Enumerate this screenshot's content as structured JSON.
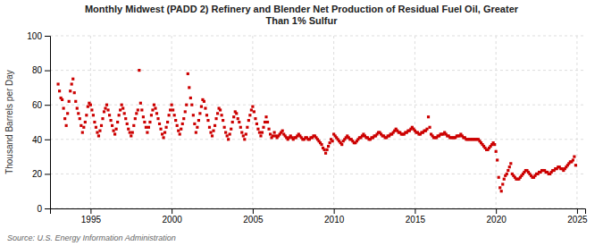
{
  "chart_data": {
    "type": "scatter",
    "title": "Monthly Midwest (PADD 2) Refinery and Blender Net Production of Residual Fuel Oil, Greater\nThan 1% Sulfur",
    "y_label": "Thousand Barrels per Day",
    "annotations": [
      "Source: U.S. Energy Information Administration"
    ],
    "color": "#cc0000",
    "marker": "square",
    "grid": true,
    "xlim": [
      1992.5,
      2025.5
    ],
    "xticks": [
      1995,
      2000,
      2005,
      2010,
      2015,
      2020,
      2025
    ],
    "ylim": [
      0,
      100
    ],
    "yticks": [
      0,
      20,
      40,
      60,
      80,
      100
    ],
    "x": [
      1993.0,
      1993.083,
      1993.167,
      1993.25,
      1993.333,
      1993.417,
      1993.5,
      1993.583,
      1993.667,
      1993.75,
      1993.833,
      1993.917,
      1994.0,
      1994.083,
      1994.167,
      1994.25,
      1994.333,
      1994.417,
      1994.5,
      1994.583,
      1994.667,
      1994.75,
      1994.833,
      1994.917,
      1995.0,
      1995.083,
      1995.167,
      1995.25,
      1995.333,
      1995.417,
      1995.5,
      1995.583,
      1995.667,
      1995.75,
      1995.833,
      1995.917,
      1996.0,
      1996.083,
      1996.167,
      1996.25,
      1996.333,
      1996.417,
      1996.5,
      1996.583,
      1996.667,
      1996.75,
      1996.833,
      1996.917,
      1997.0,
      1997.083,
      1997.167,
      1997.25,
      1997.333,
      1997.417,
      1997.5,
      1997.583,
      1997.667,
      1997.75,
      1997.833,
      1997.917,
      1998.0,
      1998.083,
      1998.167,
      1998.25,
      1998.333,
      1998.417,
      1998.5,
      1998.583,
      1998.667,
      1998.75,
      1998.833,
      1998.917,
      1999.0,
      1999.083,
      1999.167,
      1999.25,
      1999.333,
      1999.417,
      1999.5,
      1999.583,
      1999.667,
      1999.75,
      1999.833,
      1999.917,
      2000.0,
      2000.083,
      2000.167,
      2000.25,
      2000.333,
      2000.417,
      2000.5,
      2000.583,
      2000.667,
      2000.75,
      2000.833,
      2000.917,
      2001.0,
      2001.083,
      2001.167,
      2001.25,
      2001.333,
      2001.417,
      2001.5,
      2001.583,
      2001.667,
      2001.75,
      2001.833,
      2001.917,
      2002.0,
      2002.083,
      2002.167,
      2002.25,
      2002.333,
      2002.417,
      2002.5,
      2002.583,
      2002.667,
      2002.75,
      2002.833,
      2002.917,
      2003.0,
      2003.083,
      2003.167,
      2003.25,
      2003.333,
      2003.417,
      2003.5,
      2003.583,
      2003.667,
      2003.75,
      2003.833,
      2003.917,
      2004.0,
      2004.083,
      2004.167,
      2004.25,
      2004.333,
      2004.417,
      2004.5,
      2004.583,
      2004.667,
      2004.75,
      2004.833,
      2004.917,
      2005.0,
      2005.083,
      2005.167,
      2005.25,
      2005.333,
      2005.417,
      2005.5,
      2005.583,
      2005.667,
      2005.75,
      2005.833,
      2005.917,
      2006.0,
      2006.083,
      2006.167,
      2006.25,
      2006.333,
      2006.417,
      2006.5,
      2006.583,
      2006.667,
      2006.75,
      2006.833,
      2006.917,
      2007.0,
      2007.083,
      2007.167,
      2007.25,
      2007.333,
      2007.417,
      2007.5,
      2007.583,
      2007.667,
      2007.75,
      2007.833,
      2007.917,
      2008.0,
      2008.083,
      2008.167,
      2008.25,
      2008.333,
      2008.417,
      2008.5,
      2008.583,
      2008.667,
      2008.75,
      2008.833,
      2008.917,
      2009.0,
      2009.083,
      2009.167,
      2009.25,
      2009.333,
      2009.417,
      2009.5,
      2009.583,
      2009.667,
      2009.75,
      2009.833,
      2009.917,
      2010.0,
      2010.083,
      2010.167,
      2010.25,
      2010.333,
      2010.417,
      2010.5,
      2010.583,
      2010.667,
      2010.75,
      2010.833,
      2010.917,
      2011.0,
      2011.083,
      2011.167,
      2011.25,
      2011.333,
      2011.417,
      2011.5,
      2011.583,
      2011.667,
      2011.75,
      2011.833,
      2011.917,
      2012.0,
      2012.083,
      2012.167,
      2012.25,
      2012.333,
      2012.417,
      2012.5,
      2012.583,
      2012.667,
      2012.75,
      2012.833,
      2012.917,
      2013.0,
      2013.083,
      2013.167,
      2013.25,
      2013.333,
      2013.417,
      2013.5,
      2013.583,
      2013.667,
      2013.75,
      2013.833,
      2013.917,
      2014.0,
      2014.083,
      2014.167,
      2014.25,
      2014.333,
      2014.417,
      2014.5,
      2014.583,
      2014.667,
      2014.75,
      2014.833,
      2014.917,
      2015.0,
      2015.083,
      2015.167,
      2015.25,
      2015.333,
      2015.417,
      2015.5,
      2015.583,
      2015.667,
      2015.75,
      2015.833,
      2015.917,
      2016.0,
      2016.083,
      2016.167,
      2016.25,
      2016.333,
      2016.417,
      2016.5,
      2016.583,
      2016.667,
      2016.75,
      2016.833,
      2016.917,
      2017.0,
      2017.083,
      2017.167,
      2017.25,
      2017.333,
      2017.417,
      2017.5,
      2017.583,
      2017.667,
      2017.75,
      2017.833,
      2017.917,
      2018.0,
      2018.083,
      2018.167,
      2018.25,
      2018.333,
      2018.417,
      2018.5,
      2018.583,
      2018.667,
      2018.75,
      2018.833,
      2018.917,
      2019.0,
      2019.083,
      2019.167,
      2019.25,
      2019.333,
      2019.417,
      2019.5,
      2019.583,
      2019.667,
      2019.75,
      2019.833,
      2019.917,
      2020.0,
      2020.083,
      2020.167,
      2020.25,
      2020.333,
      2020.417,
      2020.5,
      2020.583,
      2020.667,
      2020.75,
      2020.833,
      2020.917,
      2021.0,
      2021.083,
      2021.167,
      2021.25,
      2021.333,
      2021.417,
      2021.5,
      2021.583,
      2021.667,
      2021.75,
      2021.833,
      2021.917,
      2022.0,
      2022.083,
      2022.167,
      2022.25,
      2022.333,
      2022.417,
      2022.5,
      2022.583,
      2022.667,
      2022.75,
      2022.833,
      2022.917,
      2023.0,
      2023.083,
      2023.167,
      2023.25,
      2023.333,
      2023.417,
      2023.5,
      2023.583,
      2023.667,
      2023.75,
      2023.833,
      2023.917,
      2024.0,
      2024.083,
      2024.167,
      2024.25,
      2024.333,
      2024.417,
      2024.5,
      2024.583,
      2024.667,
      2024.75,
      2024.833,
      2024.917
    ],
    "values": [
      72,
      68,
      64,
      63,
      58,
      52,
      48,
      55,
      62,
      68,
      72,
      75,
      67,
      62,
      58,
      55,
      52,
      48,
      44,
      47,
      50,
      54,
      59,
      61,
      60,
      57,
      54,
      50,
      47,
      44,
      42,
      45,
      48,
      52,
      56,
      58,
      60,
      57,
      54,
      51,
      48,
      45,
      43,
      46,
      50,
      54,
      57,
      60,
      58,
      55,
      52,
      49,
      46,
      44,
      42,
      44,
      48,
      52,
      55,
      57,
      80,
      61,
      57,
      53,
      50,
      47,
      44,
      47,
      50,
      54,
      57,
      60,
      58,
      55,
      52,
      49,
      46,
      43,
      41,
      44,
      47,
      50,
      54,
      57,
      60,
      57,
      54,
      51,
      48,
      45,
      43,
      46,
      49,
      52,
      56,
      60,
      78,
      70,
      64,
      60,
      54,
      49,
      44,
      47,
      51,
      55,
      59,
      63,
      62,
      58,
      54,
      51,
      47,
      44,
      42,
      45,
      48,
      52,
      55,
      58,
      57,
      54,
      51,
      47,
      44,
      42,
      40,
      43,
      46,
      50,
      53,
      56,
      55,
      52,
      50,
      47,
      44,
      42,
      40,
      43,
      47,
      51,
      54,
      57,
      59,
      56,
      52,
      49,
      46,
      44,
      42,
      44,
      47,
      50,
      53,
      50,
      46,
      43,
      41,
      42,
      44,
      42,
      41,
      42,
      43,
      44,
      45,
      43,
      42,
      41,
      40,
      41,
      42,
      41,
      40,
      41,
      41,
      42,
      43,
      42,
      41,
      40,
      40,
      41,
      41,
      40,
      40,
      41,
      41,
      42,
      42,
      41,
      40,
      39,
      38,
      37,
      35,
      34,
      32,
      34,
      36,
      38,
      40,
      39,
      43,
      42,
      41,
      40,
      39,
      38,
      37,
      39,
      40,
      41,
      42,
      41,
      40,
      40,
      39,
      38,
      38,
      39,
      40,
      41,
      41,
      42,
      43,
      42,
      41,
      41,
      40,
      40,
      41,
      41,
      42,
      42,
      43,
      44,
      44,
      43,
      42,
      42,
      41,
      41,
      42,
      42,
      43,
      43,
      44,
      45,
      46,
      45,
      44,
      44,
      43,
      43,
      43,
      44,
      44,
      45,
      45,
      46,
      47,
      46,
      45,
      44,
      44,
      43,
      43,
      44,
      44,
      45,
      45,
      46,
      53,
      47,
      43,
      42,
      41,
      41,
      41,
      42,
      42,
      43,
      43,
      43,
      44,
      43,
      42,
      42,
      41,
      41,
      41,
      41,
      41,
      42,
      42,
      42,
      43,
      42,
      41,
      41,
      40,
      40,
      40,
      40,
      40,
      40,
      40,
      40,
      40,
      40,
      39,
      38,
      37,
      36,
      35,
      34,
      34,
      35,
      36,
      37,
      38,
      37,
      33,
      28,
      18,
      12,
      10,
      14,
      17,
      19,
      20,
      22,
      24,
      26,
      20,
      19,
      18,
      17,
      17,
      17,
      18,
      19,
      20,
      21,
      22,
      22,
      21,
      20,
      19,
      18,
      18,
      19,
      20,
      20,
      21,
      21,
      22,
      22,
      22,
      21,
      21,
      20,
      20,
      21,
      22,
      22,
      23,
      23,
      24,
      24,
      23,
      23,
      22,
      23,
      24,
      25,
      26,
      27,
      27,
      28,
      30,
      25
    ]
  }
}
